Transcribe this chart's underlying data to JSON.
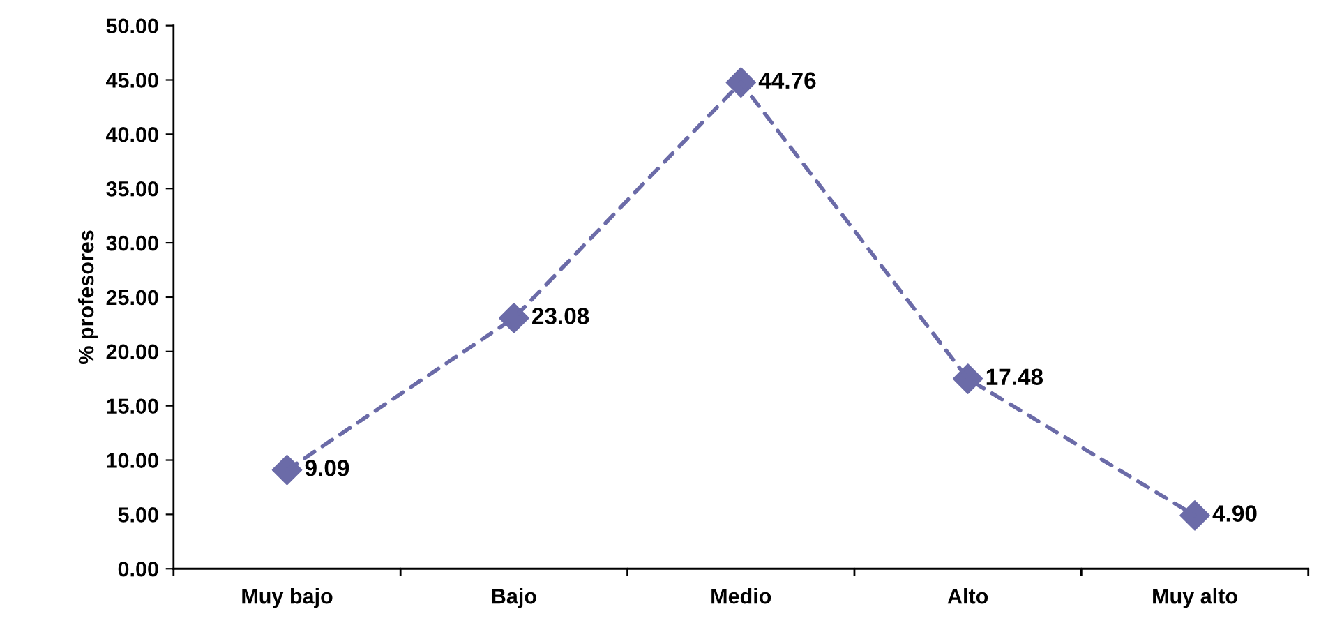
{
  "chart_data": {
    "type": "line",
    "ylabel": "% profesores",
    "categories": [
      "Muy bajo",
      "Bajo",
      "Medio",
      "Alto",
      "Muy alto"
    ],
    "series": [
      {
        "color": "#6b6ba8",
        "values": [
          9.09,
          23.08,
          44.76,
          17.48,
          4.9
        ],
        "value_labels": [
          "9.09",
          "23.08",
          "44.76",
          "17.48",
          "4.90"
        ]
      }
    ],
    "ylim": [
      0,
      50
    ],
    "yticks": [
      {
        "value": 0,
        "label": "0.00"
      },
      {
        "value": 5,
        "label": "5.00"
      },
      {
        "value": 10,
        "label": "10.00"
      },
      {
        "value": 15,
        "label": "15.00"
      },
      {
        "value": 20,
        "label": "20.00"
      },
      {
        "value": 25,
        "label": "25.00"
      },
      {
        "value": 30,
        "label": "30.00"
      },
      {
        "value": 35,
        "label": "35.00"
      },
      {
        "value": 40,
        "label": "40.00"
      },
      {
        "value": 45,
        "label": "45.00"
      },
      {
        "value": 50,
        "label": "50.00"
      }
    ],
    "marker": "diamond",
    "line_style": "dashed",
    "grid": false,
    "legend": false
  }
}
